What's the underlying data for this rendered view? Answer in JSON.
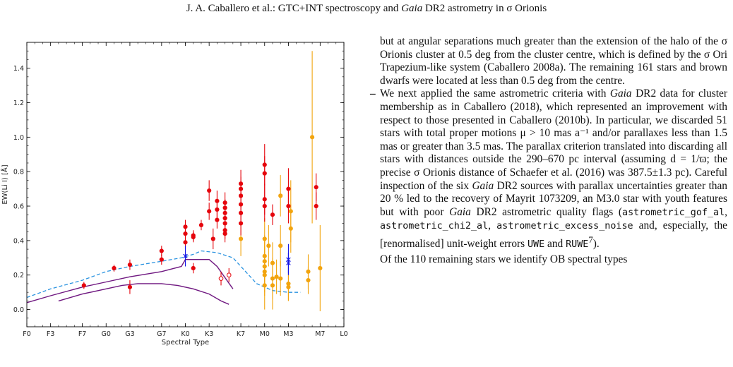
{
  "header": {
    "authors": "J. A. Caballero et al.: GTC+INT spectroscopy and",
    "mission": "Gaia",
    "rest": "DR2 astrometry in σ Orionis"
  },
  "chart_data": {
    "type": "scatter",
    "xlabel": "Spectral Type",
    "ylabel": "EW(Li I) [Å]",
    "x_ticks": [
      "F0",
      "F3",
      "F7",
      "G0",
      "G3",
      "G7",
      "K0",
      "K3",
      "K7",
      "M0",
      "M3",
      "M7",
      "L0"
    ],
    "x_tick_positions": [
      0,
      3,
      7,
      10,
      13,
      17,
      20,
      23,
      27,
      30,
      33,
      37,
      40
    ],
    "y_ticks": [
      "0.0",
      "0.2",
      "0.4",
      "0.6",
      "0.8",
      "1.0",
      "1.2",
      "1.4"
    ],
    "ylim": [
      -0.1,
      1.55
    ],
    "xlim": [
      0,
      40
    ],
    "colors": {
      "red": "#e5050c",
      "orange": "#f2a40e",
      "blue": "#1414e6",
      "purple": "#6f1780",
      "dashed": "#2a93e0"
    },
    "curves": {
      "upper_dashed": {
        "x": [
          0,
          3,
          7,
          10,
          13,
          17,
          19.5,
          21,
          22,
          24,
          26,
          28,
          29,
          31,
          33,
          34.5
        ],
        "y": [
          0.07,
          0.12,
          0.17,
          0.22,
          0.25,
          0.28,
          0.3,
          0.32,
          0.34,
          0.33,
          0.3,
          0.2,
          0.15,
          0.11,
          0.1,
          0.1
        ]
      },
      "upper_solid": {
        "x": [
          0,
          3,
          7,
          10,
          13,
          17,
          19.5,
          20,
          23,
          24,
          26
        ],
        "y": [
          0.04,
          0.08,
          0.13,
          0.16,
          0.19,
          0.22,
          0.25,
          0.29,
          0.29,
          0.25,
          0.12
        ]
      },
      "lower_solid": {
        "x": [
          4,
          7,
          10,
          12,
          14,
          17,
          19,
          21,
          23,
          24.5,
          25.5
        ],
        "y": [
          0.05,
          0.09,
          0.12,
          0.14,
          0.15,
          0.15,
          0.14,
          0.12,
          0.09,
          0.05,
          0.03
        ]
      }
    },
    "series": [
      {
        "marker": "filled-circle",
        "color": "red",
        "points": [
          [
            7.2,
            0.14,
            0.02
          ],
          [
            11.0,
            0.24,
            0.02
          ],
          [
            13.0,
            0.26,
            0.03
          ],
          [
            13.0,
            0.13,
            0.04
          ],
          [
            17.0,
            0.34,
            0.03
          ],
          [
            17.0,
            0.29,
            0.03
          ],
          [
            20.0,
            0.48,
            0.04
          ],
          [
            20.0,
            0.44,
            0.04
          ],
          [
            20.0,
            0.39,
            0.04
          ],
          [
            21.0,
            0.24,
            0.03
          ],
          [
            21.0,
            0.42,
            0.03
          ],
          [
            21.0,
            0.43,
            0.03
          ],
          [
            22.0,
            0.49,
            0.03
          ],
          [
            23.0,
            0.69,
            0.06
          ],
          [
            23.0,
            0.57,
            0.05
          ],
          [
            23.5,
            0.41,
            0.06
          ],
          [
            24.0,
            0.63,
            0.06
          ],
          [
            24.0,
            0.58,
            0.05
          ],
          [
            24.0,
            0.52,
            0.05
          ],
          [
            25.0,
            0.62,
            0.06
          ],
          [
            25.0,
            0.59,
            0.05
          ],
          [
            25.0,
            0.56,
            0.05
          ],
          [
            25.0,
            0.53,
            0.05
          ],
          [
            25.0,
            0.5,
            0.05
          ],
          [
            25.0,
            0.46,
            0.05
          ],
          [
            25.0,
            0.44,
            0.05
          ],
          [
            27.0,
            0.73,
            0.08
          ],
          [
            27.0,
            0.7,
            0.07
          ],
          [
            27.0,
            0.66,
            0.07
          ],
          [
            27.0,
            0.61,
            0.07
          ],
          [
            27.0,
            0.56,
            0.07
          ],
          [
            27.0,
            0.5,
            0.07
          ],
          [
            30.0,
            0.84,
            0.12
          ],
          [
            30.0,
            0.79,
            0.1
          ],
          [
            30.0,
            0.64,
            0.09
          ],
          [
            30.0,
            0.6,
            0.09
          ],
          [
            31.0,
            0.55,
            0.06
          ],
          [
            33.0,
            0.7,
            0.12
          ],
          [
            33.0,
            0.6,
            0.1
          ],
          [
            36.5,
            0.71,
            0.08
          ],
          [
            36.5,
            0.6,
            0.08
          ]
        ]
      },
      {
        "marker": "filled-circle",
        "color": "orange",
        "points": [
          [
            27.0,
            0.41,
            0.1
          ],
          [
            30.0,
            0.41,
            0.12
          ],
          [
            30.0,
            0.31,
            0.12
          ],
          [
            30.0,
            0.28,
            0.12
          ],
          [
            30.0,
            0.25,
            0.12
          ],
          [
            30.0,
            0.22,
            0.12
          ],
          [
            30.0,
            0.2,
            0.12
          ],
          [
            30.0,
            0.14,
            0.14
          ],
          [
            30.5,
            0.37,
            0.12
          ],
          [
            31.0,
            0.18,
            0.12
          ],
          [
            31.0,
            0.14,
            0.14
          ],
          [
            31.0,
            0.27,
            0.12
          ],
          [
            31.5,
            0.19,
            0.1
          ],
          [
            32.0,
            0.18,
            0.1
          ],
          [
            32.0,
            0.66,
            0.12
          ],
          [
            32.0,
            0.37,
            0.12
          ],
          [
            33.0,
            0.15,
            0.1
          ],
          [
            33.0,
            0.13,
            0.08
          ],
          [
            33.3,
            0.47,
            0.14
          ],
          [
            33.3,
            0.57,
            0.18
          ],
          [
            35.5,
            0.22,
            0.1
          ],
          [
            35.5,
            0.17,
            0.08
          ],
          [
            36.0,
            1.0,
            0.5
          ],
          [
            37.0,
            0.24,
            0.25
          ]
        ]
      },
      {
        "marker": "open-circle",
        "color": "red",
        "points": [
          [
            24.5,
            0.18,
            0.04
          ],
          [
            25.5,
            0.2,
            0.04
          ]
        ]
      },
      {
        "marker": "cross",
        "color": "blue",
        "points": [
          [
            20.0,
            0.31,
            0.06
          ],
          [
            33.0,
            0.27,
            0.06
          ],
          [
            33.0,
            0.29,
            0.09
          ]
        ]
      }
    ]
  },
  "text_column": {
    "p1": "but at angular separations much greater than the extension of the halo of the σ Orionis cluster at 0.5 deg from the cluster centre, which is defined by the σ Ori Trapezium-like system (Caballero 2008a). The remaining 161 stars and brown dwarfs were located at less than 0.5 deg from the centre.",
    "bullet": "–",
    "p2_a": "We next applied the same astrometric criteria with",
    "p2_gaia1": "Gaia",
    "p2_b": "DR2 data for cluster membership as in Caballero (2018), which represented an improvement with respect to those presented in Caballero (2010b). In particular, we discarded 51 stars with total proper motions μ > 10 mas a⁻¹ and/or parallaxes less than 1.5 mas or greater than 3.5 mas. The parallax criterion translated into discarding all stars with distances outside the 290–670 pc interval (assuming d = 1/ϖ; the precise σ Orionis distance of Schaefer et al. (2016) was 387.5±1.3 pc). Careful inspection of the six",
    "p2_gaia2": "Gaia",
    "p2_c": "DR2 sources with parallax uncertainties greater than 20 % led to the recovery of Mayrit 1073209, an M3.0 star with youth features but with poor",
    "p2_gaia3": "Gaia",
    "p2_d": "DR2 astrometric quality flags (",
    "code1": "astrometric_gof_al",
    "sep1": ", ",
    "code2": "astrometric_chi2_al",
    "sep2": ", ",
    "code3": "astrometric_excess_noise",
    "p2_e": " and, especially, the [renormalised] unit-weight errors ",
    "code4": "UWE",
    "and": " and ",
    "code5": "RUWE",
    "fn": "7",
    "p2_f": ").",
    "p3": "Of the 110 remaining stars we identify OB spectral types"
  }
}
